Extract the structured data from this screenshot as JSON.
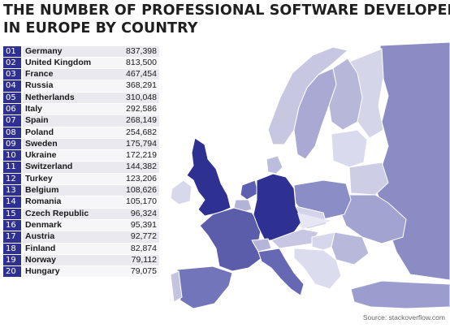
{
  "title": {
    "line1": "THE NUMBER OF PROFESSIONAL SOFTWARE DEVELOPERS",
    "line2": "IN EUROPE BY COUNTRY"
  },
  "colors": {
    "rank_badge": "#2e3192",
    "top_country": "#2e3192",
    "light_country": "#c9c9e4",
    "sea": "#ffffff"
  },
  "rankings": [
    {
      "rank": "01",
      "country": "Germany",
      "developers": "837,398"
    },
    {
      "rank": "02",
      "country": "United Kingdom",
      "developers": "813,500"
    },
    {
      "rank": "03",
      "country": "France",
      "developers": "467,454"
    },
    {
      "rank": "04",
      "country": "Russia",
      "developers": "368,291"
    },
    {
      "rank": "05",
      "country": "Netherlands",
      "developers": "310,048"
    },
    {
      "rank": "06",
      "country": "Italy",
      "developers": "292,586"
    },
    {
      "rank": "07",
      "country": "Spain",
      "developers": "268,149"
    },
    {
      "rank": "08",
      "country": "Poland",
      "developers": "254,682"
    },
    {
      "rank": "09",
      "country": "Sweden",
      "developers": "175,794"
    },
    {
      "rank": "10",
      "country": "Ukraine",
      "developers": "172,219"
    },
    {
      "rank": "11",
      "country": "Switzerland",
      "developers": "144,382"
    },
    {
      "rank": "12",
      "country": "Turkey",
      "developers": "123,206"
    },
    {
      "rank": "13",
      "country": "Belgium",
      "developers": "108,626"
    },
    {
      "rank": "14",
      "country": "Romania",
      "developers": "105,170"
    },
    {
      "rank": "15",
      "country": "Czech Republic",
      "developers": "96,324"
    },
    {
      "rank": "16",
      "country": "Denmark",
      "developers": "95,391"
    },
    {
      "rank": "17",
      "country": "Austria",
      "developers": "92,772"
    },
    {
      "rank": "18",
      "country": "Finland",
      "developers": "82,874"
    },
    {
      "rank": "19",
      "country": "Norway",
      "developers": "79,112"
    },
    {
      "rank": "20",
      "country": "Hungary",
      "developers": "79,075"
    }
  ],
  "source": "Source: stackoverflow.com"
}
